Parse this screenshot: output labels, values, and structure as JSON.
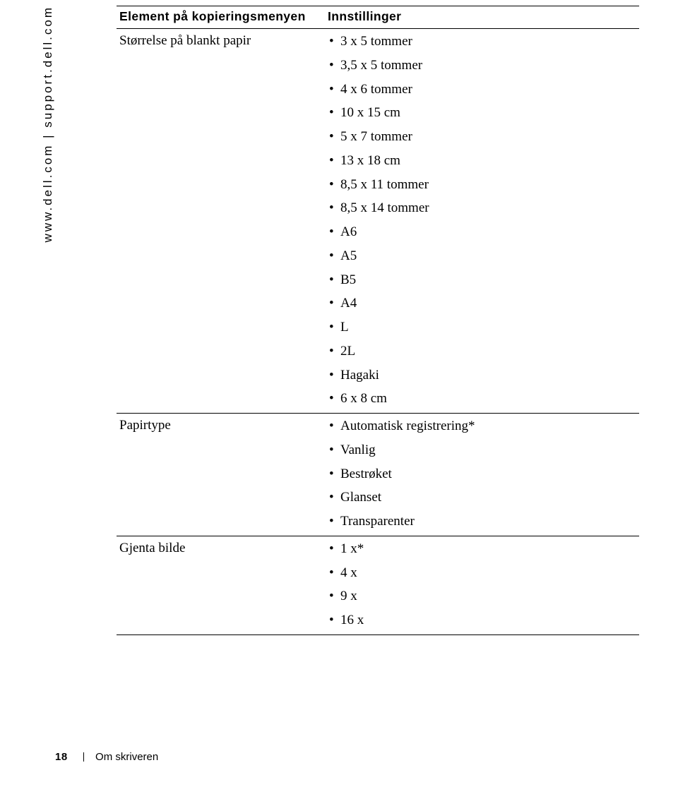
{
  "sidebar_url": "www.dell.com | support.dell.com",
  "table": {
    "headers": {
      "col1": "Element på kopieringsmenyen",
      "col2": "Innstillinger"
    },
    "rows": [
      {
        "label": "Størrelse på blankt papir",
        "items": [
          "3 x 5 tommer",
          "3,5 x 5 tommer",
          "4 x 6 tommer",
          "10 x 15 cm",
          "5 x 7 tommer",
          "13 x 18 cm",
          "8,5 x 11 tommer",
          "8,5 x 14 tommer",
          "A6",
          "A5",
          "B5",
          "A4",
          "L",
          "2L",
          "Hagaki",
          "6 x 8 cm"
        ]
      },
      {
        "label": "Papirtype",
        "items": [
          "Automatisk registrering*",
          "Vanlig",
          "Bestrøket",
          "Glanset",
          "Transparenter"
        ]
      },
      {
        "label": "Gjenta bilde",
        "items": [
          "1 x*",
          "4 x",
          "9 x",
          "16 x"
        ]
      }
    ]
  },
  "footer": {
    "page_number": "18",
    "section_title": "Om skriveren"
  },
  "colors": {
    "background": "#ffffff",
    "text": "#000000",
    "rule": "#000000"
  },
  "typography": {
    "header_font": "Arial",
    "body_font": "Georgia",
    "header_size_pt": 13,
    "body_size_pt": 14
  }
}
